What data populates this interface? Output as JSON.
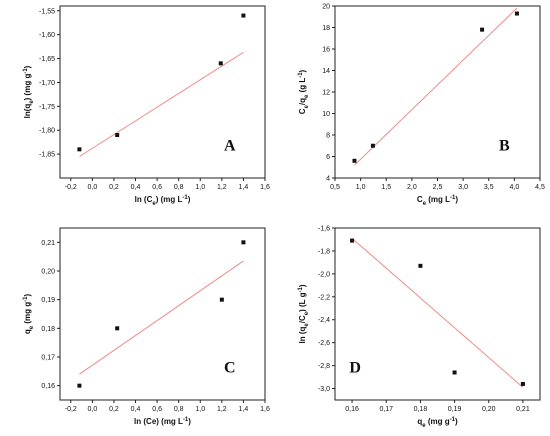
{
  "chart_data": [
    {
      "type": "scatter",
      "panel": "A",
      "xlabel": "ln (Ce) (mg L-1)",
      "ylabel": "ln(qe) (mg g-1)",
      "xlim": [
        -0.3,
        1.6
      ],
      "ylim": [
        -1.9,
        -1.54
      ],
      "xticks": [
        "-0,2",
        "0,0",
        "0,2",
        "0,4",
        "0,6",
        "0,8",
        "1,0",
        "1,2",
        "1,4",
        "1,6"
      ],
      "yticks": [
        "-1,55",
        "-1,60",
        "-1,65",
        "-1,70",
        "-1,75",
        "-1,80",
        "-1,85"
      ],
      "x": [
        -0.12,
        0.23,
        1.19,
        1.4
      ],
      "y": [
        -1.84,
        -1.81,
        -1.66,
        -1.56
      ],
      "fit": {
        "x": [
          -0.12,
          1.4
        ],
        "y": [
          -1.855,
          -1.637
        ]
      }
    },
    {
      "type": "scatter",
      "panel": "B",
      "xlabel": "Ce (mg L-1)",
      "ylabel": "Ce/qe (g L-1)",
      "xlim": [
        0.5,
        4.5
      ],
      "ylim": [
        4,
        20
      ],
      "xticks": [
        "0,5",
        "1,0",
        "1,5",
        "2,0",
        "2,5",
        "3,0",
        "3,5",
        "4,0",
        "4,5"
      ],
      "yticks": [
        "4",
        "6",
        "8",
        "10",
        "12",
        "14",
        "16",
        "18",
        "20"
      ],
      "x": [
        0.88,
        1.24,
        3.37,
        4.05
      ],
      "y": [
        5.6,
        7.0,
        17.8,
        19.3
      ],
      "fit": {
        "x": [
          0.88,
          4.05
        ],
        "y": [
          5.2,
          19.8
        ]
      }
    },
    {
      "type": "scatter",
      "panel": "C",
      "xlabel": "ln (Ce) (mg L-1)",
      "ylabel": "qe (mg g-1)",
      "xlim": [
        -0.3,
        1.6
      ],
      "ylim": [
        0.155,
        0.215
      ],
      "xticks": [
        "-0,2",
        "0,0",
        "0,2",
        "0,4",
        "0,6",
        "0,8",
        "1,0",
        "1,2",
        "1,4",
        "1,6"
      ],
      "yticks": [
        "0,21",
        "0,20",
        "0,19",
        "0,18",
        "0,17",
        "0,16"
      ],
      "x": [
        -0.12,
        0.23,
        1.2,
        1.4
      ],
      "y": [
        0.16,
        0.18,
        0.19,
        0.21
      ],
      "fit": {
        "x": [
          -0.12,
          1.4
        ],
        "y": [
          0.164,
          0.2035
        ]
      }
    },
    {
      "type": "scatter",
      "panel": "D",
      "xlabel": "qe (mg g-1)",
      "ylabel": "ln (qe/Ce) (L g-1)",
      "xlim": [
        0.155,
        0.215
      ],
      "ylim": [
        -3.1,
        -1.6
      ],
      "xticks": [
        "0,16",
        "0,17",
        "0,18",
        "0,19",
        "0,20",
        "0,21"
      ],
      "yticks": [
        "-1,6",
        "-1,8",
        "-2,0",
        "-2,2",
        "-2,4",
        "-2,6",
        "-2,8",
        "-3,0"
      ],
      "x": [
        0.16,
        0.18,
        0.19,
        0.21
      ],
      "y": [
        -1.71,
        -1.93,
        -2.86,
        -2.96
      ],
      "fit": {
        "x": [
          0.16,
          0.21
        ],
        "y": [
          -1.69,
          -2.99
        ]
      }
    }
  ]
}
